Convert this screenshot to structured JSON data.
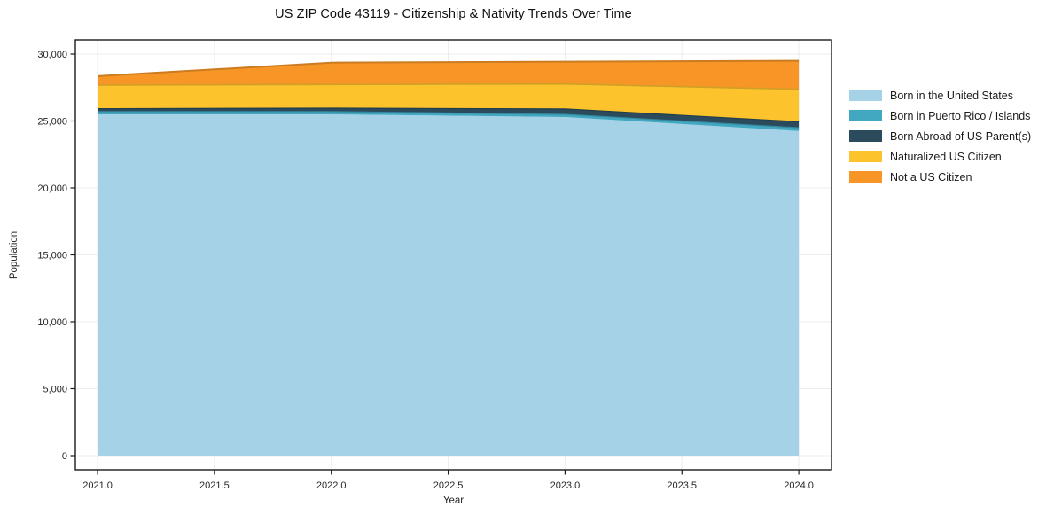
{
  "title": "US ZIP Code 43119 - Citizenship & Nativity Trends Over Time",
  "axes": {
    "xlabel": "Year",
    "ylabel": "Population"
  },
  "chart_data": {
    "type": "area",
    "stacked": true,
    "title": "US ZIP Code 43119 - Citizenship & Nativity Trends Over Time",
    "xlabel": "Year",
    "ylabel": "Population",
    "x": [
      2021,
      2022,
      2023,
      2024
    ],
    "series": [
      {
        "name": "Born in the United States",
        "color": "#a5d2e6",
        "values": [
          25500,
          25500,
          25300,
          24250
        ]
      },
      {
        "name": "Born in Puerto Rico / Islands",
        "color": "#42a7c1",
        "values": [
          200,
          200,
          200,
          250
        ]
      },
      {
        "name": "Born Abroad of US Parent(s)",
        "color": "#2b4b5c",
        "values": [
          220,
          260,
          400,
          450
        ]
      },
      {
        "name": "Naturalized US Citizen",
        "color": "#fcc32d",
        "values": [
          1760,
          1770,
          1870,
          2420
        ]
      },
      {
        "name": "Not a US Citizen",
        "color": "#f79627",
        "values": [
          670,
          1630,
          1660,
          2130
        ]
      }
    ],
    "totals": [
      28350,
      29360,
      29430,
      29500
    ],
    "xlim": [
      2020.905,
      2024.14
    ],
    "ylim": [
      -1060,
      31060
    ],
    "xticks": [
      2021.0,
      2021.5,
      2022.0,
      2022.5,
      2023.0,
      2023.5,
      2024.0
    ],
    "xtick_labels": [
      "2021.0",
      "2021.5",
      "2022.0",
      "2022.5",
      "2023.0",
      "2023.5",
      "2024.0"
    ],
    "yticks": [
      0,
      5000,
      10000,
      15000,
      20000,
      25000,
      30000
    ],
    "ytick_labels": [
      "0",
      "5,000",
      "10,000",
      "15,000",
      "20,000",
      "25,000",
      "30,000"
    ],
    "grid": true,
    "legend_position": "right",
    "colors": {
      "grid": "#ececec",
      "spine": "#1a1a1a",
      "tick_label": "#262626"
    }
  }
}
